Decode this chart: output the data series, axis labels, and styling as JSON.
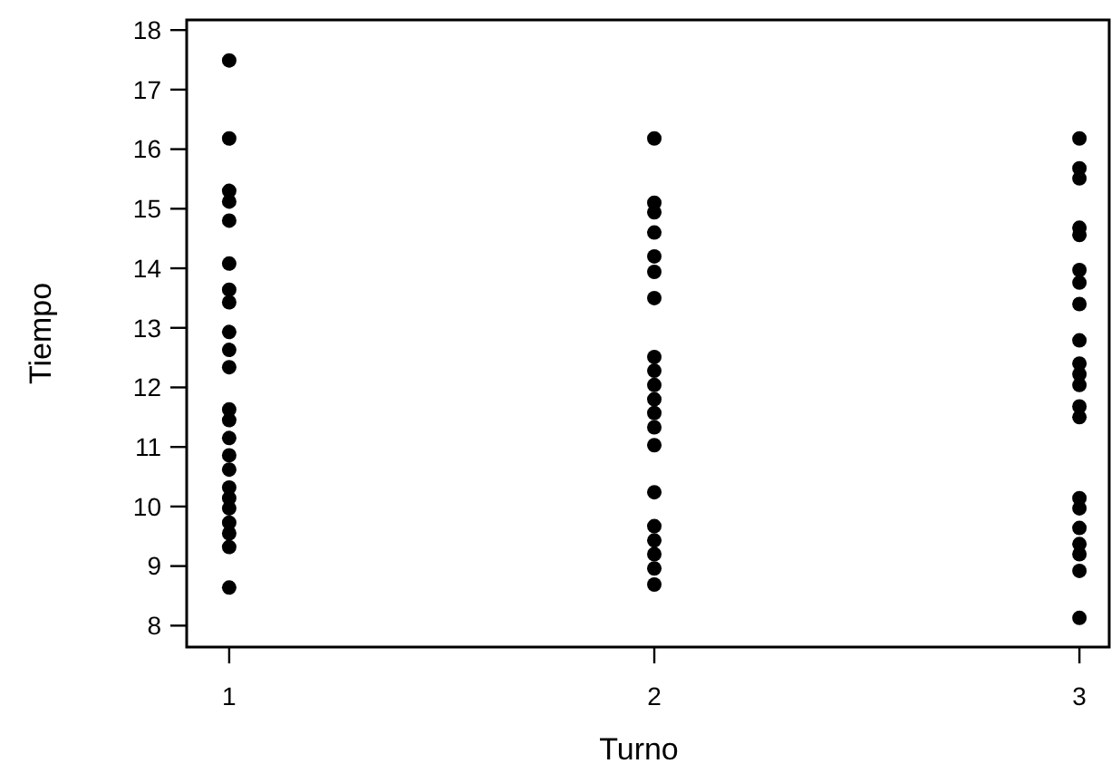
{
  "chart_data": {
    "type": "scatter",
    "xlabel": "Turno",
    "ylabel": "Tiempo",
    "xlim": [
      0.9,
      3.07
    ],
    "xticks": [
      1,
      2,
      3
    ],
    "ylim": [
      7.64,
      18.17
    ],
    "yticks": [
      8,
      9,
      10,
      11,
      12,
      13,
      14,
      15,
      16,
      17,
      18
    ],
    "grid": false,
    "marker": "circle",
    "series": [
      {
        "color": "#000000",
        "x": [
          1,
          1,
          1,
          1,
          1,
          1,
          1,
          1,
          1,
          1,
          1,
          1,
          1,
          1,
          1,
          1,
          1,
          1,
          1,
          1,
          1,
          1,
          1,
          2,
          2,
          2,
          2,
          2,
          2,
          2,
          2,
          2,
          2,
          2,
          2,
          2,
          2,
          2,
          2,
          2,
          2,
          2,
          2,
          3,
          3,
          3,
          3,
          3,
          3,
          3,
          3,
          3,
          3,
          3,
          3,
          3,
          3,
          3,
          3,
          3,
          3,
          3,
          3,
          3
        ],
        "values": [
          17.49,
          16.18,
          15.3,
          15.12,
          14.8,
          14.08,
          13.64,
          13.43,
          12.93,
          12.63,
          12.34,
          11.63,
          11.45,
          11.15,
          10.86,
          10.62,
          10.32,
          10.14,
          9.97,
          9.73,
          9.55,
          9.32,
          8.64,
          16.18,
          15.1,
          14.94,
          14.6,
          14.2,
          13.94,
          13.5,
          12.51,
          12.28,
          12.04,
          11.8,
          11.57,
          11.33,
          11.03,
          10.24,
          9.67,
          9.43,
          9.2,
          8.96,
          8.69,
          16.18,
          15.68,
          15.51,
          14.68,
          14.56,
          13.97,
          13.76,
          13.4,
          12.79,
          12.4,
          12.22,
          12.04,
          11.68,
          11.5,
          10.14,
          9.97,
          9.64,
          9.37,
          9.2,
          8.92,
          8.13
        ]
      }
    ]
  }
}
